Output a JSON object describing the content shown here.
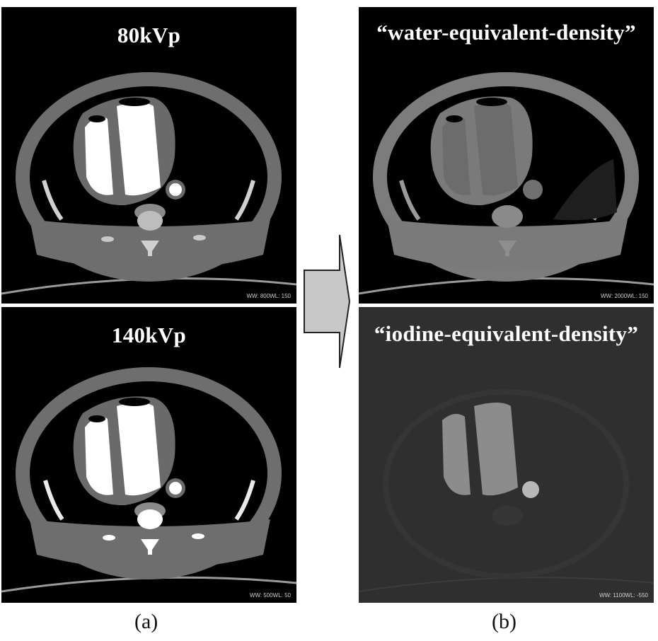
{
  "panels": {
    "kvp80": {
      "title": "80kVp",
      "window": "WW: 800WL: 150"
    },
    "kvp140": {
      "title": "140kVp",
      "window": "WW: 500WL: 50"
    },
    "water": {
      "title": "“water-equivalent-density”",
      "window": "WW: 2000WL: 150"
    },
    "iodine": {
      "title": "“iodine-equivalent-density”",
      "window": "WW: 1100WL: -550"
    }
  },
  "captions": {
    "left": "(a)",
    "right": "(b)"
  },
  "colors": {
    "arrow_fill": "#c8c8c8",
    "arrow_stroke": "#222222",
    "background": "#ffffff"
  }
}
